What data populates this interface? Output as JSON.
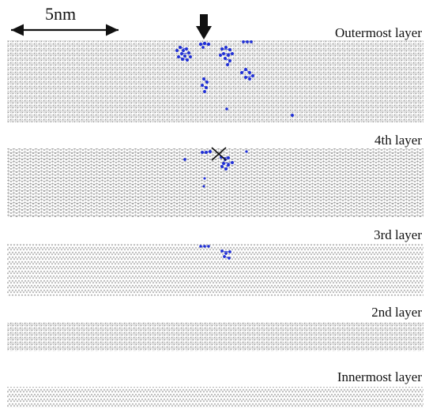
{
  "scale_bar": {
    "label": "5nm"
  },
  "layers": [
    {
      "label": "Outermost layer"
    },
    {
      "label": "4th layer"
    },
    {
      "label": "3rd layer"
    },
    {
      "label": "2nd layer"
    },
    {
      "label": "Innermost layer"
    }
  ],
  "markers": {
    "impact_arrow": "down-arrow",
    "defect_mark": "x-mark"
  },
  "colors": {
    "lattice": "#a9a9a9",
    "defect_atoms": "#1f2fd6",
    "ink": "#111111"
  }
}
